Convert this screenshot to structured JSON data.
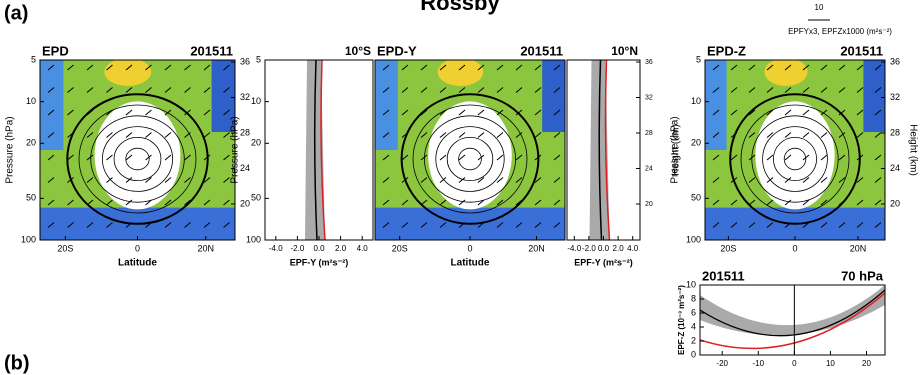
{
  "title": "Rossby",
  "panel_labels": [
    "(a)",
    "(b)"
  ],
  "legend": {
    "scale": "10",
    "caption": "EPFYx3, EPFZx1000 (m²s⁻²)"
  },
  "panels": [
    {
      "left_title": "EPD",
      "right_title": "201511",
      "y_label": "Pressure (hPa)",
      "x_label": "Latitude",
      "yticks": [
        "5",
        "10",
        "20",
        "50",
        "100"
      ],
      "xticks": [
        "20S",
        "0",
        "20N"
      ],
      "y2ticks": [
        "36",
        "32",
        "28",
        "24",
        "20"
      ]
    },
    {
      "title": "10°S",
      "y_label": "Pressure (hPa)",
      "x_label": "EPF-Y (m²s⁻²)",
      "yticks": [
        "5",
        "10",
        "20",
        "50",
        "100"
      ],
      "xticks": [
        "-4.0",
        "-2.0",
        "0.0",
        "2.0",
        "4.0"
      ]
    },
    {
      "left_title": "EPD-Y",
      "right_title": "201511",
      "x_label": "Latitude",
      "xticks": [
        "20S",
        "0",
        "20N"
      ]
    },
    {
      "title": "10°N",
      "y_label": "Height (km)",
      "x_label": "EPF-Y (m²s⁻²)",
      "xticks": [
        "-4.0",
        "-2.0",
        "0.0",
        "2.0",
        "4.0"
      ],
      "y2ticks": [
        "36",
        "32",
        "28",
        "24",
        "20"
      ]
    },
    {
      "left_title": "EPD-Z",
      "right_title": "201511",
      "y_label": "Pressure (hPa)",
      "y2_label": "Height (km)",
      "yticks": [
        "5",
        "10",
        "20",
        "50",
        "100"
      ],
      "xticks": [
        "20S",
        "0",
        "20N"
      ],
      "y2ticks": [
        "36",
        "32",
        "28",
        "24",
        "20"
      ]
    },
    {
      "left_title": "201511",
      "right_title": "70 hPa",
      "y_label": "EPF-Z (10⁻³ m²s⁻²)",
      "yticks": [
        "0",
        "2",
        "4",
        "6",
        "8",
        "10"
      ],
      "xticks": [
        "-20",
        "-10",
        "0",
        "10",
        "20"
      ]
    }
  ]
}
